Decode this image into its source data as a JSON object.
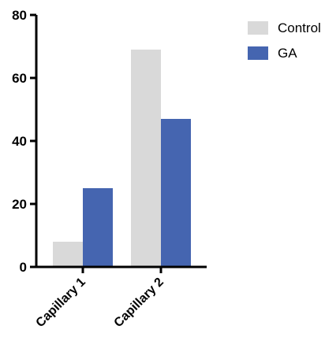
{
  "chart_data": {
    "type": "bar",
    "categories": [
      "Capillary 1",
      "Capillary 2"
    ],
    "series": [
      {
        "name": "Control",
        "values": [
          8,
          69
        ],
        "color": "#d9d9d9"
      },
      {
        "name": "GA",
        "values": [
          25,
          47
        ],
        "color": "#4565b0"
      }
    ],
    "ylim": [
      0,
      80
    ],
    "yticks": [
      "0",
      "20",
      "40",
      "60",
      "80"
    ],
    "legend_position": "top-right",
    "grid": false
  }
}
